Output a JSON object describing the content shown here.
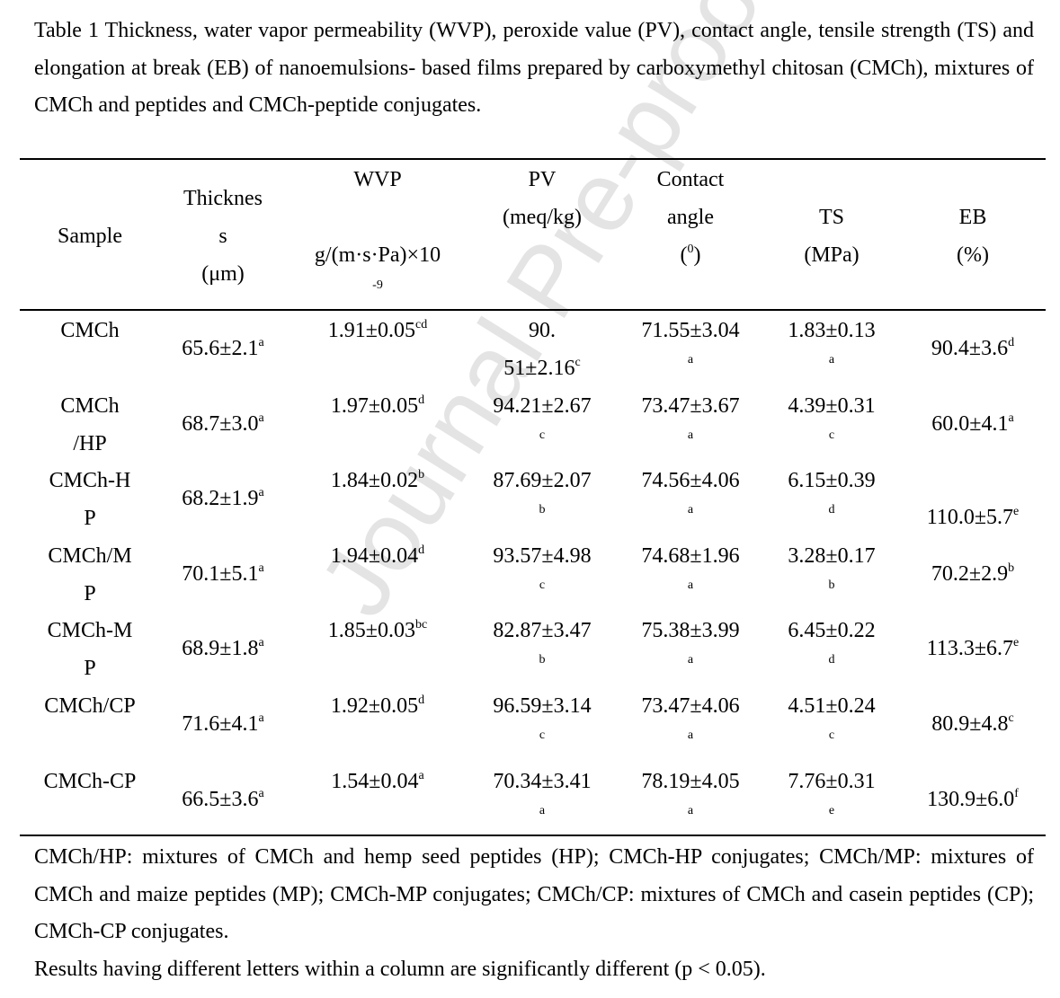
{
  "caption": "Table 1 Thickness, water vapor permeability (WVP), peroxide value (PV), contact angle, tensile strength (TS) and elongation at break (EB) of nanoemulsions- based films prepared by carboxymethyl chitosan (CMCh), mixtures of CMCh and peptides and CMCh-peptide conjugates.",
  "watermark": "Journal Pre-proof",
  "headers": {
    "sample": "Sample",
    "thickness": [
      "Thicknes",
      "s",
      "(μm)"
    ],
    "wvp": [
      "WVP",
      "g/(m·s·Pa)×10",
      "-9"
    ],
    "pv": [
      "PV",
      "(meq/kg)"
    ],
    "contact": [
      "Contact",
      "angle",
      "(",
      "0",
      ")"
    ],
    "ts": [
      "TS",
      "(MPa)"
    ],
    "eb": [
      "EB",
      "(%)"
    ]
  },
  "rows": [
    {
      "sample": [
        "CMCh"
      ],
      "thickness": "65.6±2.1",
      "thickness_sup": "a",
      "wvp": "1.91±0.05",
      "wvp_sup": "cd",
      "pv": [
        "90.",
        "51±2.16"
      ],
      "pv_sup": "c",
      "contact": "71.55±3.04",
      "contact_sup": "a",
      "ts": "1.83±0.13",
      "ts_sup": "a",
      "eb": "90.4±3.6",
      "eb_sup": "d"
    },
    {
      "sample": [
        "CMCh",
        "/HP"
      ],
      "thickness": "68.7±3.0",
      "thickness_sup": "a",
      "wvp": "1.97±0.05",
      "wvp_sup": "d",
      "pv": [
        "94.21±2.67"
      ],
      "pv_sup": "c",
      "contact": "73.47±3.67",
      "contact_sup": "a",
      "ts": "4.39±0.31",
      "ts_sup": "c",
      "eb": "60.0±4.1",
      "eb_sup": "a"
    },
    {
      "sample": [
        "CMCh-H",
        "P"
      ],
      "thickness": "68.2±1.9",
      "thickness_sup": "a",
      "wvp": "1.84±0.02",
      "wvp_sup": "b",
      "pv": [
        "87.69±2.07"
      ],
      "pv_sup": "b",
      "contact": "74.56±4.06",
      "contact_sup": "a",
      "ts": "6.15±0.39",
      "ts_sup": "d",
      "eb": "110.0±5.7",
      "eb_sup": "e"
    },
    {
      "sample": [
        "CMCh/M",
        "P"
      ],
      "thickness": "70.1±5.1",
      "thickness_sup": "a",
      "wvp": "1.94±0.04",
      "wvp_sup": "d",
      "pv": [
        "93.57±4.98"
      ],
      "pv_sup": "c",
      "contact": "74.68±1.96",
      "contact_sup": "a",
      "ts": "3.28±0.17",
      "ts_sup": "b",
      "eb": "70.2±2.9",
      "eb_sup": "b"
    },
    {
      "sample": [
        "CMCh-M",
        "P"
      ],
      "thickness": "68.9±1.8",
      "thickness_sup": "a",
      "wvp": "1.85±0.03",
      "wvp_sup": "bc",
      "pv": [
        "82.87±3.47"
      ],
      "pv_sup": "b",
      "contact": "75.38±3.99",
      "contact_sup": "a",
      "ts": "6.45±0.22",
      "ts_sup": "d",
      "eb": "113.3±6.7",
      "eb_sup": "e"
    },
    {
      "sample": [
        "CMCh/CP"
      ],
      "thickness": "71.6±4.1",
      "thickness_sup": "a",
      "wvp": "1.92±0.05",
      "wvp_sup": "d",
      "pv": [
        "96.59±3.14"
      ],
      "pv_sup": "c",
      "contact": "73.47±4.06",
      "contact_sup": "a",
      "ts": "4.51±0.24",
      "ts_sup": "c",
      "eb": "80.9±4.8",
      "eb_sup": "c"
    },
    {
      "sample": [
        "CMCh-CP"
      ],
      "thickness": "66.5±3.6",
      "thickness_sup": "a",
      "wvp": "1.54±0.04",
      "wvp_sup": "a",
      "pv": [
        "70.34±3.41"
      ],
      "pv_sup": "a",
      "contact": "78.19±4.05",
      "contact_sup": "a",
      "ts": "7.76±0.31",
      "ts_sup": "e",
      "eb": "130.9±6.0",
      "eb_sup": "f"
    }
  ],
  "footnotes": [
    "CMCh/HP: mixtures of CMCh and hemp seed peptides (HP); CMCh-HP conjugates; CMCh/MP: mixtures of CMCh and maize peptides (MP); CMCh-MP conjugates; CMCh/CP: mixtures of CMCh and casein peptides (CP); CMCh-CP conjugates.",
    "Results having different letters within a column are significantly different (p < 0.05)."
  ]
}
